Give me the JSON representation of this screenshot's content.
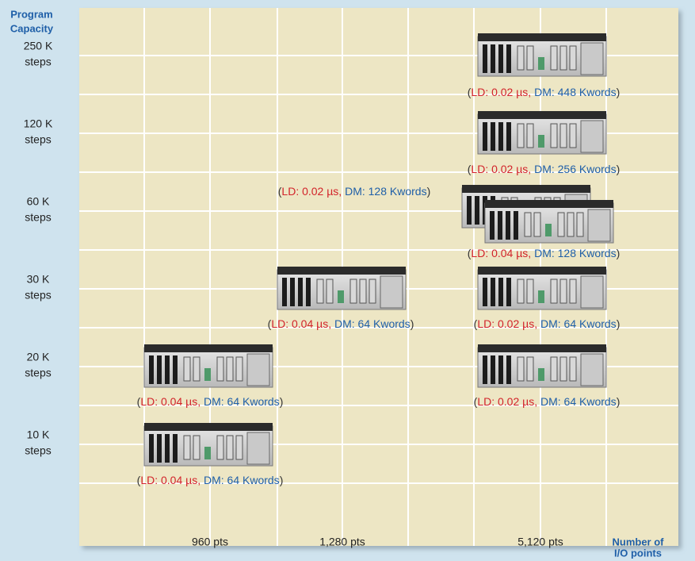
{
  "y_axis": {
    "title": [
      "Program",
      "Capacity"
    ],
    "labels": [
      {
        "size": "250 K",
        "unit": "steps"
      },
      {
        "size": "120 K",
        "unit": "steps"
      },
      {
        "size": "60 K",
        "unit": "steps"
      },
      {
        "size": "30 K",
        "unit": "steps"
      },
      {
        "size": "20 K",
        "unit": "steps"
      },
      {
        "size": "10 K",
        "unit": "steps"
      }
    ]
  },
  "x_axis": {
    "title": [
      "Number of",
      "I/O points"
    ],
    "labels": [
      "960 pts",
      "1,280 pts",
      "5,120 pts"
    ]
  },
  "paren_open": "(",
  "paren_close": ")",
  "products": [
    {
      "ld": "LD: 0.02 µs,",
      "dm": "DM: 448 Kwords"
    },
    {
      "ld": "LD: 0.02 µs,",
      "dm": "DM: 256 Kwords"
    },
    {
      "ld": "LD: 0.02 µs,",
      "dm": "DM: 128 Kwords"
    },
    {
      "ld": "LD: 0.04 µs,",
      "dm": "DM: 128 Kwords"
    },
    {
      "ld": "LD: 0.04 µs,",
      "dm": "DM: 64 Kwords"
    },
    {
      "ld": "LD: 0.02 µs,",
      "dm": "DM: 64 Kwords"
    },
    {
      "ld": "LD: 0.04 µs,",
      "dm": "DM: 64 Kwords"
    },
    {
      "ld": "LD: 0.02 µs,",
      "dm": "DM: 64 Kwords"
    },
    {
      "ld": "LD: 0.04 µs,",
      "dm": "DM: 64 Kwords"
    }
  ]
}
